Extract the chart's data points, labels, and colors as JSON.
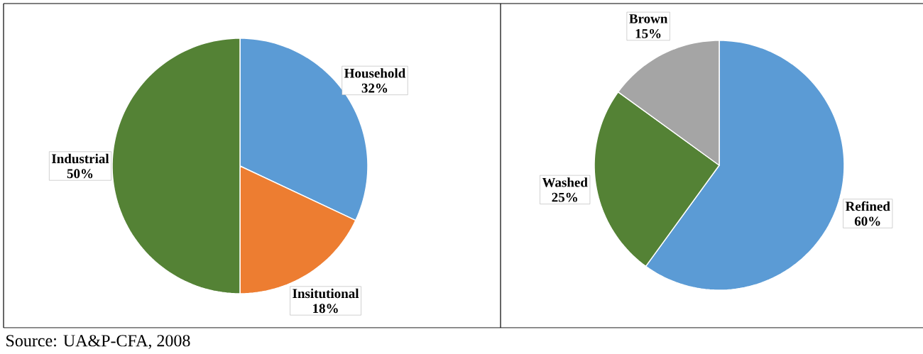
{
  "chart_data": [
    {
      "type": "pie",
      "categories": [
        "Household",
        "Insitutional",
        "Industrial"
      ],
      "values": [
        32,
        18,
        50
      ],
      "value_labels": [
        "32%",
        "18%",
        "50%"
      ],
      "colors": [
        "#5b9bd5",
        "#ed7d31",
        "#548235"
      ],
      "annotations": [
        "Source: UA&P-CFA, 2008"
      ]
    },
    {
      "type": "pie",
      "categories": [
        "Refined",
        "Washed",
        "Brown"
      ],
      "values": [
        60,
        25,
        15
      ],
      "value_labels": [
        "60%",
        "25%",
        "15%"
      ],
      "colors": [
        "#5b9bd5",
        "#548235",
        "#a5a5a5"
      ]
    }
  ]
}
